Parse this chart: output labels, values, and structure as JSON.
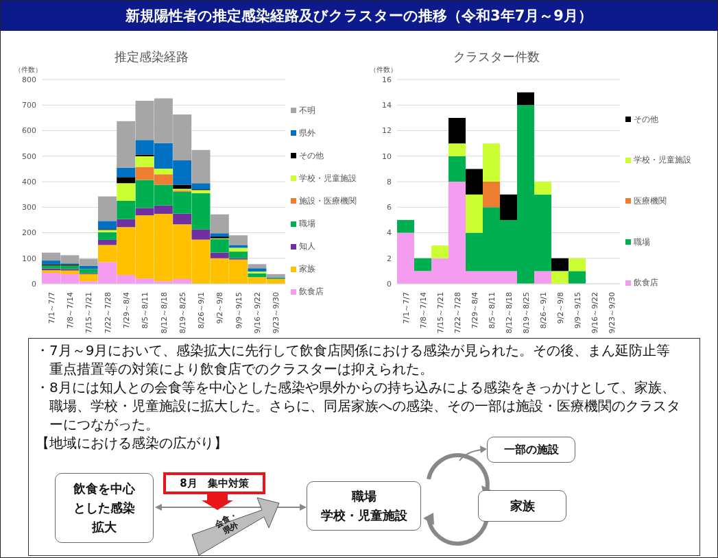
{
  "chart_data": [
    {
      "type": "other",
      "title": "新規陽性者の推定感染経路及びクラスターの推移（令和3年7月～9月）"
    },
    {
      "type": "bar",
      "title": "推定感染経路",
      "ylabel": "（件数）",
      "stacked": true,
      "grid": "y",
      "legend": "right",
      "categories": [
        "7/1～7/7",
        "7/8～7/14",
        "7/15～7/21",
        "7/22～7/28",
        "7/29～8/4",
        "8/5～8/11",
        "8/12～8/18",
        "8/19～8/25",
        "8/26～9/1",
        "9/2～9/8",
        "9/9～9/15",
        "9/16～9/22",
        "9/23～9/30"
      ],
      "ylim": [
        0,
        800
      ],
      "yticks": [
        0,
        100,
        200,
        300,
        400,
        500,
        600,
        700,
        800
      ],
      "series": [
        {
          "name": "飲食店",
          "color": "#f49cf0",
          "values": [
            43,
            38,
            10,
            85,
            35,
            21,
            10,
            19,
            0,
            0,
            0,
            0,
            0
          ]
        },
        {
          "name": "家族",
          "color": "#ffc000",
          "values": [
            10,
            14,
            28,
            67,
            187,
            247,
            264,
            214,
            173,
            100,
            95,
            26,
            19
          ]
        },
        {
          "name": "知人",
          "color": "#7030a0",
          "values": [
            7,
            6,
            3,
            20,
            31,
            29,
            33,
            42,
            40,
            22,
            5,
            0,
            0
          ]
        },
        {
          "name": "職場",
          "color": "#00b050",
          "values": [
            12,
            14,
            17,
            30,
            72,
            110,
            81,
            86,
            142,
            53,
            26,
            15,
            3
          ]
        },
        {
          "name": "施設・医療機関",
          "color": "#ed7d31",
          "values": [
            0,
            0,
            0,
            0,
            0,
            51,
            41,
            4,
            0,
            0,
            0,
            0,
            0
          ]
        },
        {
          "name": "学校・児童施設",
          "color": "#ccff33",
          "values": [
            0,
            0,
            0,
            9,
            69,
            41,
            22,
            7,
            12,
            3,
            15,
            7,
            0
          ]
        },
        {
          "name": "その他",
          "color": "#000000",
          "values": [
            4,
            4,
            0,
            3,
            24,
            7,
            0,
            16,
            3,
            7,
            0,
            0,
            0
          ]
        },
        {
          "name": "県外",
          "color": "#0070c0",
          "values": [
            15,
            4,
            12,
            32,
            37,
            57,
            100,
            95,
            24,
            13,
            11,
            13,
            2
          ]
        },
        {
          "name": "不明",
          "color": "#a6a6a6",
          "values": [
            31,
            32,
            28,
            96,
            182,
            154,
            175,
            180,
            130,
            74,
            38,
            16,
            14
          ]
        }
      ]
    },
    {
      "type": "bar",
      "title": "クラスター件数",
      "ylabel": "（件数）",
      "stacked": true,
      "grid": "y",
      "legend": "right",
      "categories": [
        "7/1～7/7",
        "7/8～7/14",
        "7/15～7/21",
        "7/22～7/28",
        "7/29～8/4",
        "8/5～8/11",
        "8/12～8/18",
        "8/19～8/25",
        "8/26～9/1",
        "9/2～9/8",
        "9/9～9/15",
        "9/16～9/22",
        "9/23～9/30"
      ],
      "ylim": [
        0,
        16
      ],
      "yticks": [
        0,
        2,
        4,
        6,
        8,
        10,
        12,
        14,
        16
      ],
      "series": [
        {
          "name": "飲食店",
          "color": "#f49cf0",
          "values": [
            4,
            1,
            2,
            8,
            1,
            1,
            1,
            0,
            1,
            0,
            0,
            0,
            0
          ]
        },
        {
          "name": "職場",
          "color": "#00b050",
          "values": [
            1,
            1,
            0,
            2,
            3,
            5,
            4,
            14,
            6,
            0,
            1,
            0,
            0
          ]
        },
        {
          "name": "医療機関",
          "color": "#ed7d31",
          "values": [
            0,
            0,
            0,
            0,
            0,
            2,
            0,
            0,
            0,
            0,
            0,
            0,
            0
          ]
        },
        {
          "name": "学校・児童施設",
          "color": "#ccff33",
          "values": [
            0,
            0,
            1,
            1,
            3,
            3,
            0,
            0,
            1,
            1,
            1,
            0,
            0
          ]
        },
        {
          "name": "その他",
          "color": "#000000",
          "values": [
            0,
            0,
            0,
            2,
            2,
            0,
            2,
            1,
            0,
            1,
            0,
            0,
            0
          ]
        }
      ]
    },
    {
      "type": "other",
      "annotations": [
        "・7月～9月において、感染拡大に先行して飲食店関係における感染が見られた。その後、まん延防止等重点措置等の対策により飲食店でのクラスターは抑えられた。",
        "・8月には知人との会食等を中心とした感染や県外からの持ち込みによる感染をきっかけとして、家族、職場、学校・児童施設に拡大した。さらに、同居家族への感染、その一部は施設・医療機関のクラスターにつながった。",
        "【地域における感染の広がり】",
        "飲食を中心とした感染拡大",
        "8月　集中対策",
        "会食・県外",
        "職場",
        "学校・児童施設",
        "一部の施設",
        "家族"
      ]
    }
  ]
}
